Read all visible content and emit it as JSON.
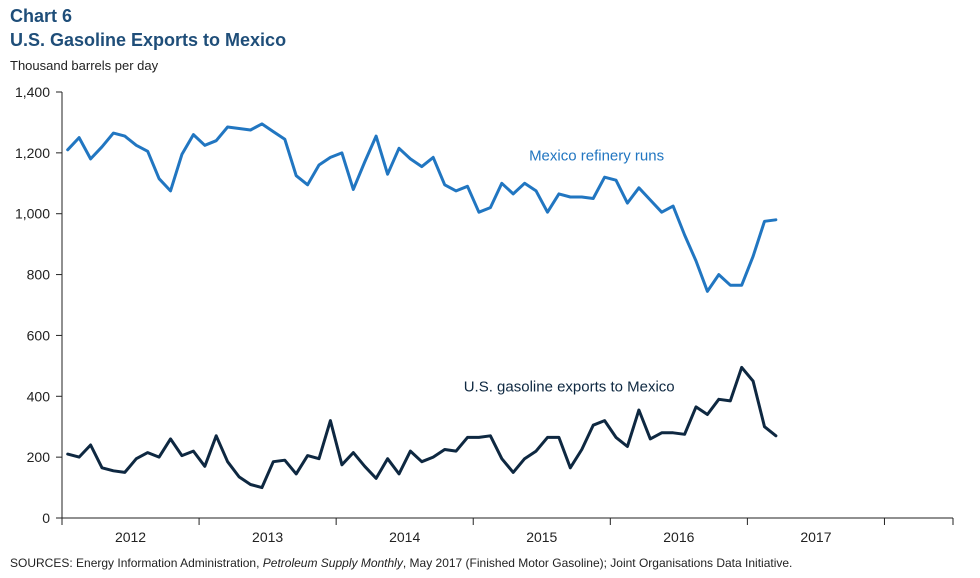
{
  "header": {
    "chart_number": "Chart 6",
    "title": "U.S. Gasoline Exports to Mexico",
    "unit_label": "Thousand barrels per day"
  },
  "footer": {
    "sources_prefix": "SOURCES: Energy Information Administration, ",
    "sources_italic": "Petroleum Supply Monthly",
    "sources_suffix": ", May 2017 (Finished Motor Gasoline); Joint Organisations Data Initiative."
  },
  "colors": {
    "title": "#1f4e79",
    "refinery": "#2176c1",
    "exports": "#0e2841",
    "axis": "#222222"
  },
  "chart_data": {
    "type": "line",
    "xlabel": "",
    "ylabel": "Thousand barrels per day",
    "ylim": [
      0,
      1400
    ],
    "y_ticks": [
      0,
      200,
      400,
      600,
      800,
      1000,
      1200,
      1400
    ],
    "y_tick_labels": [
      "0",
      "200",
      "400",
      "600",
      "800",
      "1,000",
      "1,200",
      "1,400"
    ],
    "x_range": [
      2011.5,
      2018.0
    ],
    "x_ticks": [
      2012,
      2013,
      2014,
      2015,
      2016,
      2017
    ],
    "x_tick_labels": [
      "2012",
      "2013",
      "2014",
      "2015",
      "2016",
      "2017"
    ],
    "x_start_label": "2011-07",
    "grid": false,
    "legend": "inline labels",
    "series": [
      {
        "name": "Mexico refinery runs",
        "color": "#2176c1",
        "values": [
          1210,
          1250,
          1180,
          1220,
          1265,
          1255,
          1225,
          1205,
          1115,
          1075,
          1195,
          1260,
          1225,
          1240,
          1285,
          1280,
          1275,
          1295,
          1270,
          1245,
          1125,
          1095,
          1160,
          1185,
          1200,
          1080,
          1170,
          1255,
          1130,
          1215,
          1180,
          1155,
          1185,
          1095,
          1075,
          1090,
          1005,
          1020,
          1100,
          1065,
          1100,
          1075,
          1005,
          1065,
          1055,
          1055,
          1050,
          1120,
          1110,
          1035,
          1085,
          1045,
          1005,
          1025,
          930,
          845,
          745,
          800,
          765,
          765,
          860,
          975,
          980
        ]
      },
      {
        "name": "U.S. gasoline exports to Mexico",
        "color": "#0e2841",
        "values": [
          210,
          200,
          240,
          165,
          155,
          150,
          195,
          215,
          200,
          260,
          205,
          220,
          170,
          270,
          185,
          135,
          110,
          100,
          185,
          190,
          145,
          205,
          195,
          320,
          175,
          215,
          170,
          130,
          195,
          145,
          220,
          185,
          200,
          225,
          220,
          265,
          265,
          270,
          195,
          150,
          195,
          220,
          265,
          265,
          165,
          225,
          305,
          320,
          265,
          235,
          355,
          260,
          280,
          280,
          275,
          365,
          340,
          390,
          385,
          495,
          450,
          300,
          270
        ]
      }
    ],
    "annotations": [
      {
        "text": "Mexico refinery runs",
        "series": 0
      },
      {
        "text": "U.S. gasoline exports to Mexico",
        "series": 1
      }
    ]
  }
}
